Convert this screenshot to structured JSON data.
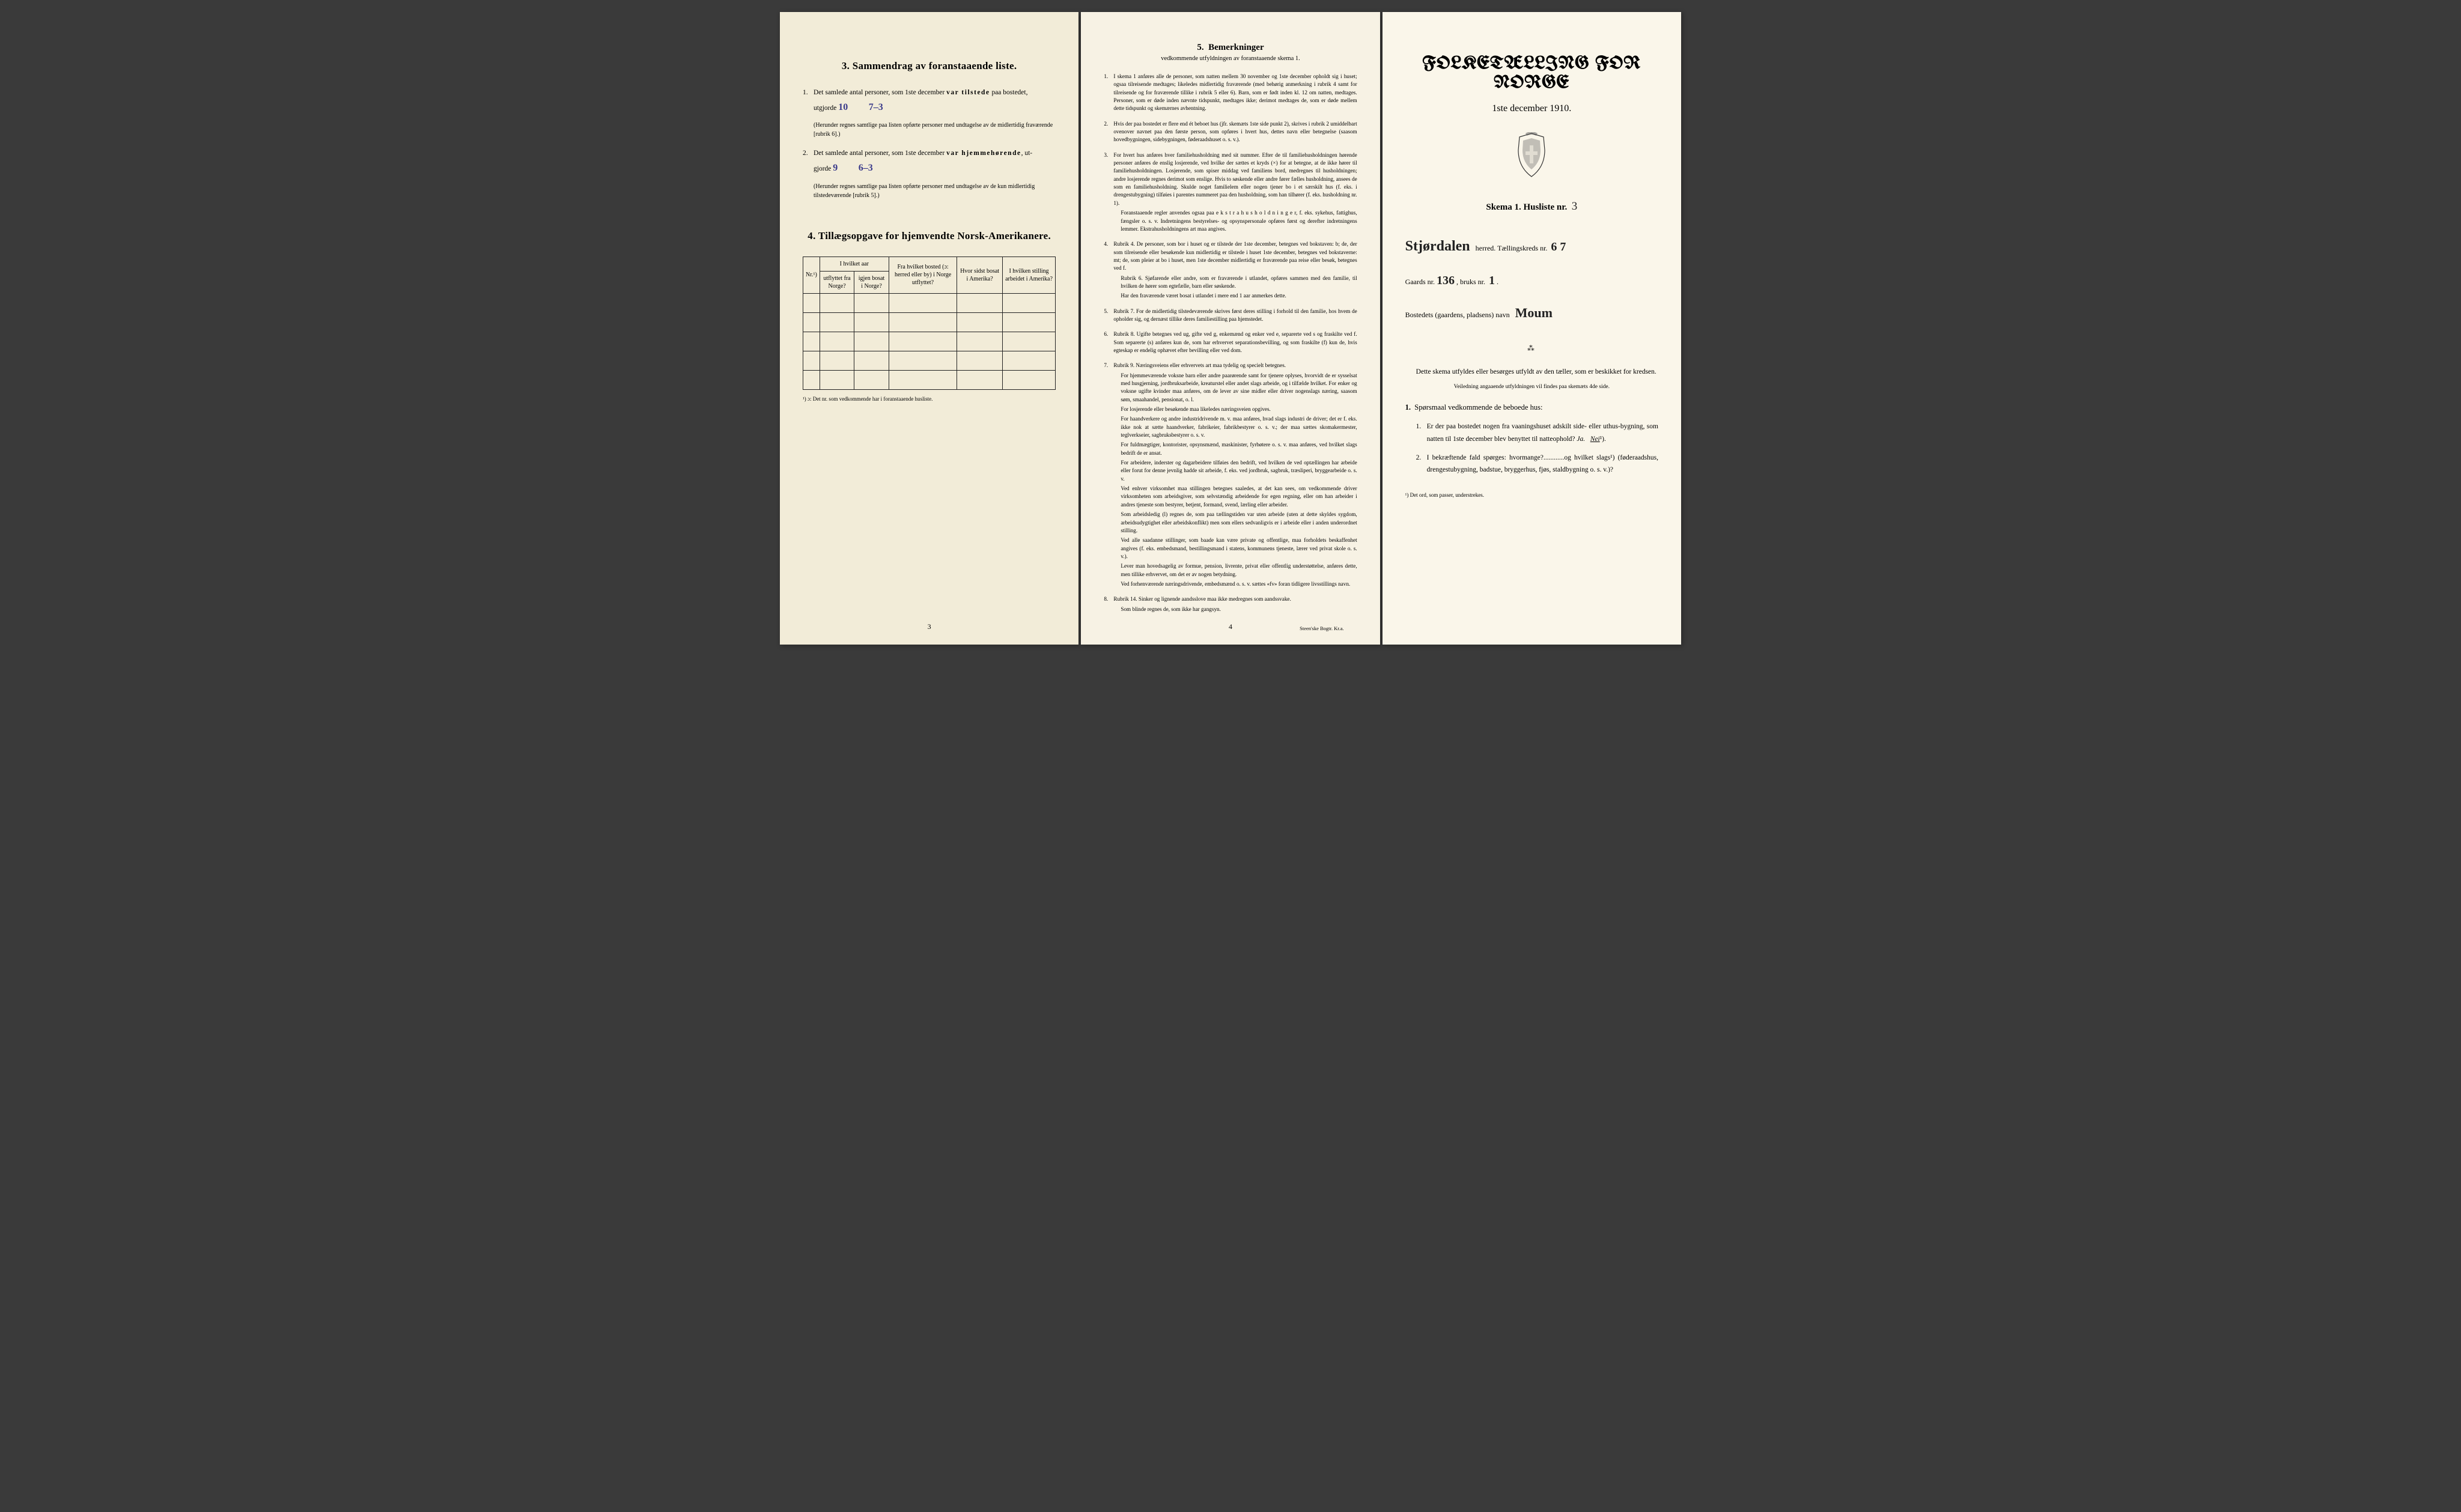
{
  "left": {
    "section3_title": "3.   Sammendrag av foranstaaende liste.",
    "item1_prefix": "Det samlede antal personer, som 1ste december ",
    "item1_bold": "var tilstede",
    "item1_suffix": " paa bostedet,",
    "item1_line2": "utgjorde ",
    "item1_hw1": "10",
    "item1_hw2": "7–3",
    "item1_paren": "(Herunder regnes samtlige paa listen opførte personer med undtagelse av de midlertidig fraværende [rubrik 6].)",
    "item2_prefix": "Det samlede antal personer, som 1ste december ",
    "item2_bold": "var hjemmehørende",
    "item2_suffix": ", ut-",
    "item2_line2": "gjorde ",
    "item2_hw1": "9",
    "item2_hw2": "6–3",
    "item2_paren": "(Herunder regnes samtlige paa listen opførte personer med undtagelse av de kun midlertidig tilstedeværende [rubrik 5].)",
    "section4_title": "4.   Tillægsopgave for hjemvendte Norsk-Amerikanere.",
    "table": {
      "col1": "Nr.¹)",
      "col2_top": "I hvilket aar",
      "col2a": "utflyttet fra Norge?",
      "col2b": "igjen bosat i Norge?",
      "col3": "Fra hvilket bosted (ɔ: herred eller by) i Norge utflyttet?",
      "col4": "Hvor sidst bosat i Amerika?",
      "col5": "I hvilken stilling arbeidet i Amerika?"
    },
    "footnote": "¹) ɔ: Det nr. som vedkommende har i foranstaaende husliste.",
    "pagenum": "3"
  },
  "middle": {
    "title_num": "5.",
    "title": "Bemerkninger",
    "subtitle": "vedkommende utfyldningen av foranstaaende skema 1.",
    "remarks": [
      {
        "n": "1.",
        "body": [
          "I skema 1 anføres alle de personer, som natten mellem 30 november og 1ste december opholdt sig i huset; ogsaa tilreisende medtages; likeledes midlertidig fraværende (med behørig anmerkning i rubrik 4 samt for tilreisende og for fraværende tillike i rubrik 5 eller 6). Barn, som er født inden kl. 12 om natten, medtages. Personer, som er døde inden nævnte tidspunkt, medtages ikke; derimot medtages de, som er døde mellem dette tidspunkt og skemærnes avhentning."
        ]
      },
      {
        "n": "2.",
        "body": [
          "Hvis der paa bostedet er flere end ét beboet hus (jfr. skemæts 1ste side punkt 2), skrives i rubrik 2 umiddelbart ovenover navnet paa den første person, som opføres i hvert hus, dettes navn eller betegnelse (saasom hovedbygningen, sidebygningen, føderaadshuset o. s. v.)."
        ]
      },
      {
        "n": "3.",
        "body": [
          "For hvert hus anføres hver familiehusholdning med sit nummer. Efter de til familiehusholdningen hørende personer anføres de enslig losjerende, ved hvilke der sættes et kryds (×) for at betegne, at de ikke hører til familiehusholdningen. Losjerende, som spiser middag ved familiens bord, medregnes til husholdningen; andre losjerende regnes derimot som enslige. Hvis to søskende eller andre fører fælles husholdning, ansees de som en familiehusholdning. Skulde noget familielem eller nogen tjener bo i et særskilt hus (f. eks. i drengestubygning) tilføies i parentes nummeret paa den husholdning, som han tilhører (f. eks. husholdning nr. 1).",
          "Foranstaaende regler anvendes ogsaa paa e k s t r a h u s h o l d n i n g e r, f. eks. sykehus, fattighus, fængsler o. s. v. Indretningens bestyrelses- og opsynspersonale opføres først og derefter indretningens lemmer. Ekstrahusholdningens art maa angives."
        ]
      },
      {
        "n": "4.",
        "body": [
          "Rubrik 4. De personer, som bor i huset og er tilstede der 1ste december, betegnes ved bokstaven: b; de, der som tilreisende eller besøkende kun midlertidig er tilstede i huset 1ste december, betegnes ved bokstaverne: mt; de, som pleier at bo i huset, men 1ste december midlertidig er fraværende paa reise eller besøk, betegnes ved f.",
          "Rubrik 6. Sjøfarende eller andre, som er fraværende i utlandet, opføres sammen med den familie, til hvilken de hører som egtefælle, barn eller søskende.",
          "Har den fraværende været bosat i utlandet i mere end 1 aar anmerkes dette."
        ]
      },
      {
        "n": "5.",
        "body": [
          "Rubrik 7. For de midlertidig tilstedeværende skrives først deres stilling i forhold til den familie, hos hvem de opholder sig, og dernæst tillike deres familiestilling paa hjemstedet."
        ]
      },
      {
        "n": "6.",
        "body": [
          "Rubrik 8. Ugifte betegnes ved ug, gifte ved g, enkemænd og enker ved e, separerte ved s og fraskilte ved f. Som separerte (s) anføres kun de, som har erhvervet separationsbevilling, og som fraskilte (f) kun de, hvis egteskap er endelig ophævet efter bevilling eller ved dom."
        ]
      },
      {
        "n": "7.",
        "body": [
          "Rubrik 9. Næringsveiens eller erhvervets art maa tydelig og specielt betegnes.",
          "For hjemmeværende voksne barn eller andre paarørende samt for tjenere oplyses, hvorvidt de er sysselsat med husgjerning, jordbruksarbeide, kreaturstel eller andet slags arbeide, og i tilfælde hvilket. For enker og voksne ugifte kvinder maa anføres, om de lever av sine midler eller driver nogenslags næring, saasom søm, smaahandel, pensionat, o. l.",
          "For losjerende eller besøkende maa likeledes næringsveien opgives.",
          "For haandverkere og andre industridrivende m. v. maa anføres, hvad slags industri de driver; det er f. eks. ikke nok at sætte haandverker, fabrikeier, fabrikbestyrer o. s. v.; der maa sættes skomakermester, teglverkseier, sagbruksbestyrer o. s. v.",
          "For fuldmægtiger, kontorister, opsynsmænd, maskinister, fyrbøtere o. s. v. maa anføres, ved hvilket slags bedrift de er ansat.",
          "For arbeidere, inderster og dagarbeidere tilføies den bedrift, ved hvilken de ved optællingen har arbeide eller forut for denne jevnlig hadde sit arbeide, f. eks. ved jordbruk, sagbruk, træsliperi, bryggearbeide o. s. v.",
          "Ved enhver virksomhet maa stillingen betegnes saaledes, at det kan sees, om vedkommende driver virksomheten som arbeidsgiver, som selvstændig arbeidende for egen regning, eller om han arbeider i andres tjeneste som bestyrer, betjent, formand, svend, lærling eller arbeider.",
          "Som arbeidsledig (l) regnes de, som paa tællingstiden var uten arbeide (uten at dette skyldes sygdom, arbeidsudygtighet eller arbeidskonflikt) men som ellers sedvanligvis er i arbeide eller i anden underordnet stilling.",
          "Ved alle saadanne stillinger, som baade kan være private og offentlige, maa forholdets beskaffenhet angives (f. eks. embedsmand, bestillingsmand i statens, kommunens tjeneste, lærer ved privat skole o. s. v.).",
          "Lever man hovedsagelig av formue, pension, livrente, privat eller offentlig understøttelse, anføres dette, men tillike erhvervet, om det er av nogen betydning.",
          "Ved forhenværende næringsdrivende, embedsmænd o. s. v. sættes «fv» foran tidligere livsstillings navn."
        ]
      },
      {
        "n": "8.",
        "body": [
          "Rubrik 14. Sinker og lignende aandsslove maa ikke medregnes som aandssvake.",
          "Som blinde regnes de, som ikke har gangsyn."
        ]
      }
    ],
    "pagenum": "4",
    "imprint": "Steen'ske Bogtr.  Kr.a."
  },
  "right": {
    "main_title": "FOLKETÆLLING FOR NORGE",
    "main_date": "1ste december 1910.",
    "skema_label": "Skema 1.   Husliste nr.",
    "skema_hw": "3",
    "line1_hw": "Stjørdalen",
    "line1_label": "herred.  Tællingskreds nr.",
    "line1_hw2": "6 7",
    "line2_label1": "Gaards nr.",
    "line2_hw1": "136",
    "line2_label2": ", bruks nr.",
    "line2_hw2": "1",
    "line3_label": "Bostedets (gaardens, pladsens) navn",
    "line3_hw": "Moum",
    "desc": "Dette skema utfyldes eller besørges utfyldt av den tæller, som er beskikket for kredsen.",
    "small_note": "Veiledning angaaende utfyldningen vil findes paa skemæts 4de side.",
    "q_heading_num": "1.",
    "q_heading": "Spørsmaal vedkommende de beboede hus:",
    "q1_num": "1.",
    "q1": "Er der paa bostedet nogen fra vaaningshuset adskilt side- eller uthus-bygning, som natten til 1ste december blev benyttet til natteophold?    ",
    "q1_ja": "Ja.",
    "q1_nei": "Nei",
    "q1_sup": "¹).",
    "q2_num": "2.",
    "q2": "I bekræftende fald spørges: hvormange?............og hvilket slags¹) (føderaadshus, drengestubygning, badstue, bryggerhus, fjøs, staldbygning o. s. v.)?",
    "footnote": "¹) Det ord, som passer, understrekes."
  },
  "colors": {
    "handwriting": "#3a3a8a",
    "text": "#1a1a1a",
    "page_left": "#f2ecd8",
    "page_mid": "#f7f2e4",
    "page_right": "#faf6ea"
  }
}
